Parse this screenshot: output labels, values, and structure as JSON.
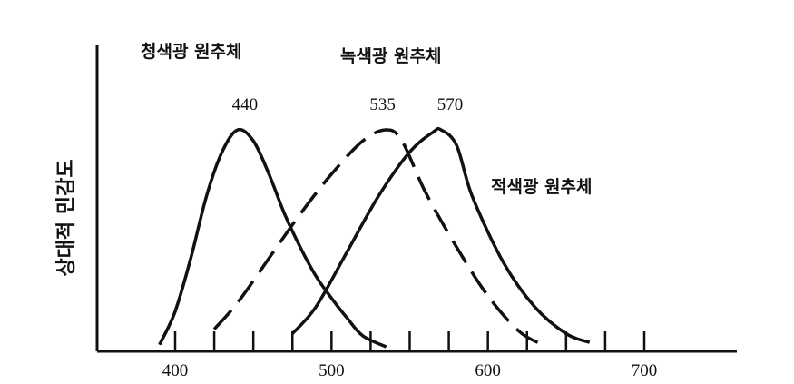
{
  "chart_data": {
    "type": "line",
    "title": "",
    "xlabel": "",
    "ylabel": "상대적 민감도",
    "xlim": [
      350,
      750
    ],
    "ylim": [
      0,
      1.05
    ],
    "x_ticks": [
      400,
      500,
      600,
      700
    ],
    "x_tick_labels": [
      "400",
      "500",
      "600",
      "700"
    ],
    "x_minor_ticks": [
      400,
      425,
      450,
      475,
      500,
      525,
      550,
      575,
      600,
      625,
      650,
      675,
      700
    ],
    "grid": false,
    "series": [
      {
        "name": "청색광 원추체",
        "peak": 440,
        "peak_label": "440",
        "line_style": "solid",
        "color": "#111111",
        "x": [
          390,
          400,
          410,
          420,
          430,
          440,
          450,
          460,
          470,
          480,
          490,
          500,
          510,
          520,
          535
        ],
        "y": [
          0.03,
          0.18,
          0.42,
          0.7,
          0.9,
          1.0,
          0.95,
          0.8,
          0.62,
          0.47,
          0.34,
          0.24,
          0.15,
          0.07,
          0.02
        ]
      },
      {
        "name": "녹색광 원추체",
        "peak": 535,
        "peak_label": "535",
        "line_style": "dashed",
        "color": "#111111",
        "x": [
          425,
          440,
          460,
          480,
          500,
          520,
          535,
          545,
          560,
          580,
          600,
          620,
          635
        ],
        "y": [
          0.1,
          0.22,
          0.42,
          0.62,
          0.8,
          0.95,
          1.0,
          0.95,
          0.72,
          0.47,
          0.25,
          0.09,
          0.03
        ]
      },
      {
        "name": "적색광 원추체",
        "peak": 570,
        "peak_label": "570",
        "line_style": "solid",
        "color": "#111111",
        "x": [
          475,
          490,
          510,
          530,
          550,
          565,
          570,
          580,
          590,
          610,
          630,
          650,
          665
        ],
        "y": [
          0.08,
          0.2,
          0.45,
          0.7,
          0.9,
          0.99,
          1.0,
          0.93,
          0.7,
          0.4,
          0.2,
          0.08,
          0.04
        ]
      }
    ]
  }
}
